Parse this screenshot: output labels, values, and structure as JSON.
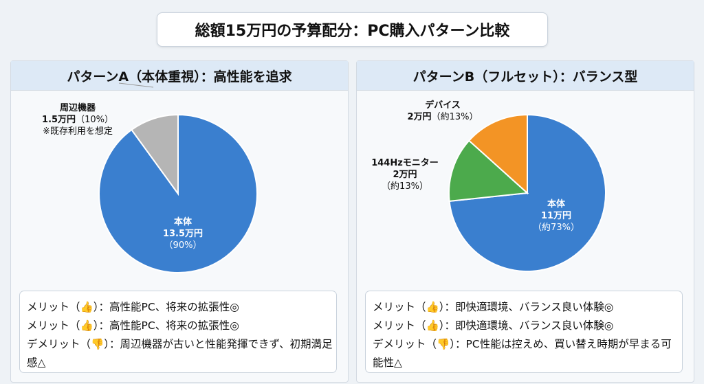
{
  "title": "総額15万円の予算配分：PC購入パターン比較",
  "chart_data": [
    {
      "type": "pie",
      "title": "パターンA（本体重視）：高性能を追求",
      "slices": [
        {
          "label": "本体",
          "value": 13.5,
          "value_text": "13.5万円",
          "percent_text": "（90%）",
          "color": "#3a7fcf"
        },
        {
          "label": "周辺機器",
          "value": 1.5,
          "value_text": "1.5万円",
          "percent_text": "（10%）",
          "note": "※既存利用を想定",
          "color": "#b5b5b5"
        }
      ],
      "notes": [
        "メリット（👍）：高性能PC、将来の拡張性◎",
        "メリット（👍）：高性能PC、将来の拡張性◎",
        "デメリット（👎）：周辺機器が古いと性能発揮できず、初期満足感△"
      ]
    },
    {
      "type": "pie",
      "title": "パターンB（フルセット）：バランス型",
      "slices": [
        {
          "label": "本体",
          "value": 11,
          "value_text": "11万円",
          "percent_text": "（約73%）",
          "color": "#3a7fcf"
        },
        {
          "label": "144Hzモニター",
          "value": 2,
          "value_text": "2万円",
          "percent_text": "（約13%）",
          "color": "#4caa4c"
        },
        {
          "label": "デバイス",
          "value": 2,
          "value_text": "2万円",
          "percent_text": "（約13%）",
          "color": "#f39425"
        }
      ],
      "notes": [
        "メリット（👍）：即快適環境、バランス良い体験◎",
        "メリット（👍）：即快適環境、バランス良い体験◎",
        "デメリット（👎）：PC性能は控えめ、買い替え時期が早まる可能性△"
      ]
    }
  ]
}
